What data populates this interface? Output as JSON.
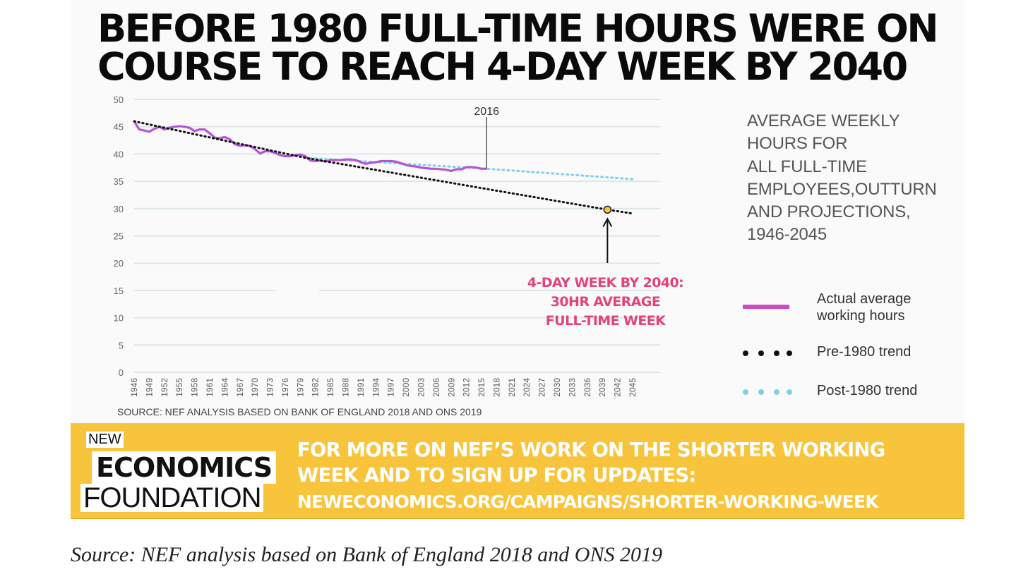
{
  "title_lines": [
    "BEFORE 1980 FULL-TIME HOURS WERE ON",
    "COURSE TO REACH 4-DAY WEEK BY 2040"
  ],
  "side_title_lines": [
    "AVERAGE WEEKLY",
    "HOURS FOR",
    "ALL FULL-TIME",
    "EMPLOYEES,OUTTURN",
    "AND PROJECTIONS,",
    "1946-2045"
  ],
  "annotation_lines": [
    "4-DAY WEEK BY 2040:",
    "30HR AVERAGE",
    "FULL-TIME WEEK"
  ],
  "marker_label": "2016",
  "source_inner": "SOURCE: NEF ANALYSIS BASED ON BANK OF ENGLAND 2018 AND ONS 2019",
  "legend": [
    {
      "label_lines": [
        "Actual average",
        "working hours"
      ],
      "style": "solid",
      "color": "#c94dc2"
    },
    {
      "label_lines": [
        "Pre-1980 trend"
      ],
      "style": "dotted",
      "color": "#111111"
    },
    {
      "label_lines": [
        "Post-1980 trend"
      ],
      "style": "dotted",
      "color": "#7fd0e8"
    }
  ],
  "banner": {
    "logo_new": "NEW",
    "logo_economics": "ECONOMICS",
    "logo_foundation": "FOUNDATION",
    "lines": [
      "FOR MORE ON NEF’S WORK ON THE SHORTER WORKING",
      "WEEK AND TO SIGN UP FOR UPDATES:"
    ],
    "url": "NEWECONOMICS.ORG/CAMPAIGNS/SHORTER-WORKING-WEEK"
  },
  "caption": "Source: NEF analysis based on Bank of England 2018 and ONS 2019",
  "colors": {
    "actual": "#b455d6",
    "pre_trend": "#111111",
    "post_trend": "#7fd0e8",
    "annotation": "#e2447a",
    "banner": "#f8c43c",
    "grid": "#dde6e8"
  },
  "chart_data": {
    "type": "line",
    "title": "AVERAGE WEEKLY HOURS FOR ALL FULL-TIME EMPLOYEES,OUTTURN AND PROJECTIONS, 1946-2045",
    "xlabel": "",
    "ylabel": "",
    "xlim": [
      1946,
      2045
    ],
    "ylim": [
      0,
      50
    ],
    "y_ticks": [
      0,
      5,
      10,
      15,
      20,
      25,
      30,
      35,
      40,
      45,
      50
    ],
    "x_ticks": [
      1946,
      1949,
      1952,
      1955,
      1958,
      1961,
      1964,
      1967,
      1970,
      1973,
      1976,
      1979,
      1982,
      1985,
      1988,
      1991,
      1994,
      1997,
      2000,
      2003,
      2006,
      2009,
      2012,
      2015,
      2018,
      2021,
      2024,
      2027,
      2030,
      2033,
      2036,
      2039,
      2042,
      2045
    ],
    "grid": true,
    "legend_position": "right",
    "series": [
      {
        "name": "Actual average working hours",
        "style": "solid",
        "x": [
          1946,
          1947,
          1948,
          1949,
          1950,
          1951,
          1952,
          1953,
          1954,
          1955,
          1956,
          1957,
          1958,
          1959,
          1960,
          1961,
          1962,
          1963,
          1964,
          1965,
          1966,
          1967,
          1968,
          1969,
          1970,
          1971,
          1972,
          1973,
          1974,
          1975,
          1976,
          1977,
          1978,
          1979,
          1980,
          1981,
          1982,
          1983,
          1984,
          1985,
          1986,
          1987,
          1988,
          1989,
          1990,
          1991,
          1992,
          1993,
          1994,
          1995,
          1996,
          1997,
          1998,
          1999,
          2000,
          2001,
          2002,
          2003,
          2004,
          2005,
          2006,
          2007,
          2008,
          2009,
          2010,
          2011,
          2012,
          2013,
          2014,
          2015,
          2016
        ],
        "y": [
          46.0,
          44.5,
          44.3,
          44.1,
          44.6,
          45.0,
          44.5,
          44.8,
          45.0,
          45.1,
          45.0,
          44.8,
          44.2,
          44.5,
          44.5,
          43.8,
          43.0,
          42.9,
          43.1,
          42.7,
          41.8,
          41.5,
          41.6,
          41.5,
          40.9,
          40.1,
          40.5,
          40.5,
          40.2,
          39.8,
          39.6,
          39.6,
          39.8,
          39.9,
          39.6,
          38.8,
          38.7,
          38.8,
          38.6,
          38.9,
          38.9,
          38.9,
          39.0,
          39.0,
          38.9,
          38.5,
          38.2,
          38.4,
          38.5,
          38.7,
          38.7,
          38.7,
          38.6,
          38.3,
          38.0,
          37.8,
          37.7,
          37.5,
          37.4,
          37.3,
          37.3,
          37.2,
          37.1,
          36.9,
          37.2,
          37.2,
          37.6,
          37.6,
          37.5,
          37.3,
          37.3
        ]
      },
      {
        "name": "Pre-1980 trend",
        "style": "dotted",
        "x": [
          1946,
          1980,
          2040,
          2045
        ],
        "y": [
          46.0,
          39.3,
          29.8,
          29.1
        ]
      },
      {
        "name": "Post-1980 trend",
        "style": "dotted",
        "x": [
          1980,
          2016,
          2045
        ],
        "y": [
          39.3,
          37.3,
          35.4
        ]
      }
    ],
    "annotations": [
      {
        "text": "2016",
        "x": 2016,
        "y": 37.3
      },
      {
        "text": "4-DAY WEEK BY 2040: 30HR AVERAGE FULL-TIME WEEK",
        "x": 2040,
        "y": 29.8
      }
    ]
  }
}
